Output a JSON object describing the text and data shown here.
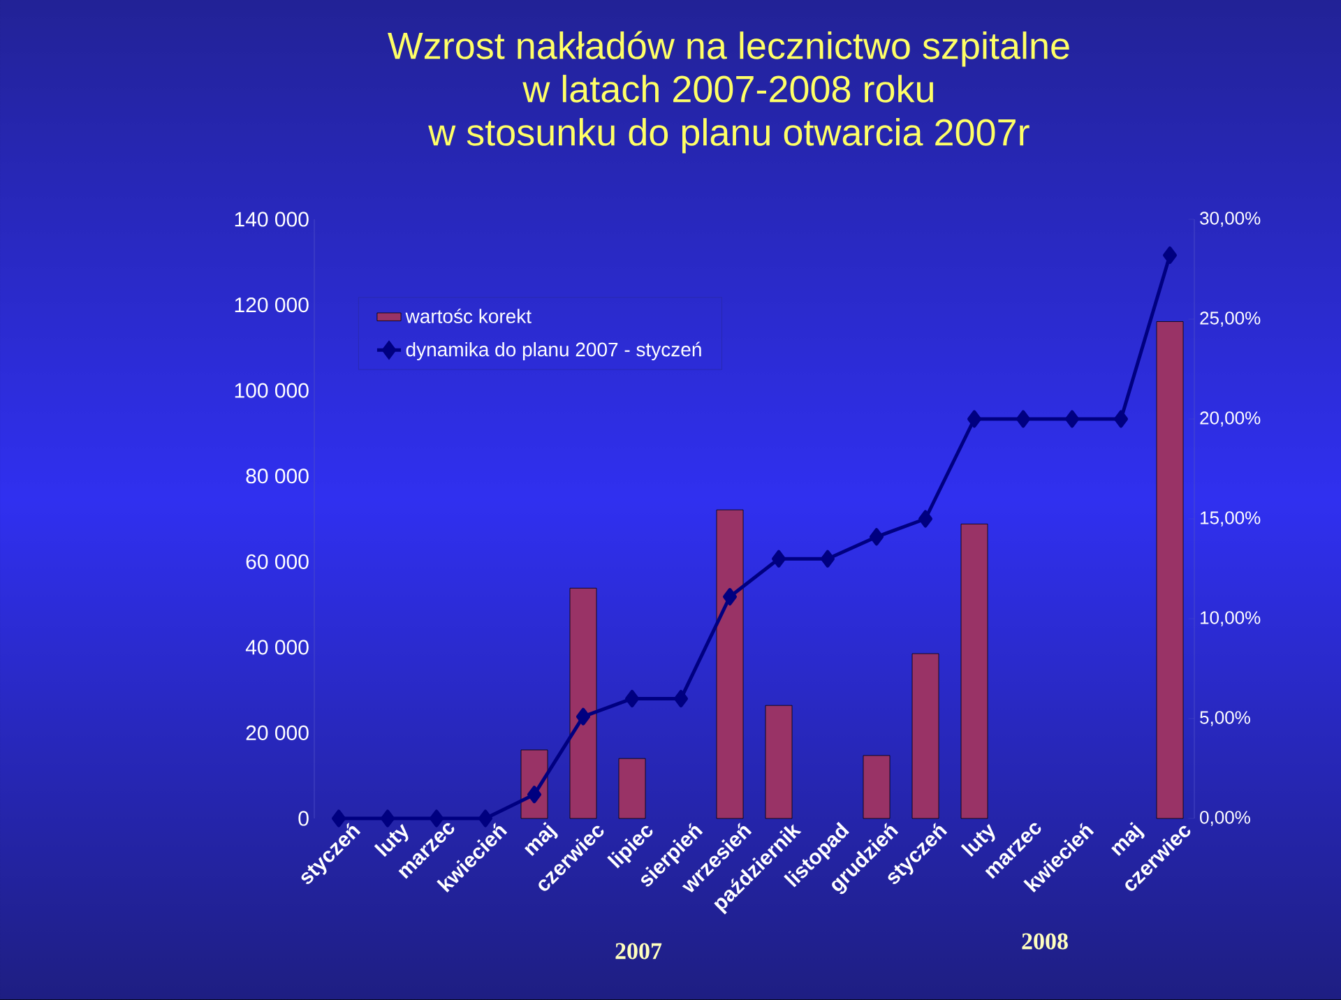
{
  "chart_data": {
    "type": "bar",
    "title": "Wzrost nakładów na lecznictwo szpitalne\nw latach 2007-2008 roku\nw stosunku do planu otwarcia 2007r",
    "categories": [
      "styczeń",
      "luty",
      "marzec",
      "kwiecień",
      "maj",
      "czerwiec",
      "lipiec",
      "sierpień",
      "wrzesień",
      "październik",
      "listopad",
      "grudzień",
      "styczeń",
      "luty",
      "marzec",
      "kwiecień",
      "maj",
      "czerwiec"
    ],
    "series": [
      {
        "name": "wartośc korekt",
        "color": "#993366",
        "values": [
          null,
          null,
          null,
          null,
          16000,
          53800,
          14000,
          null,
          72100,
          26400,
          null,
          14700,
          38500,
          68800,
          null,
          null,
          null,
          116100
        ]
      },
      {
        "name": "dynamika do planu 2007 - styczeń",
        "type": "line",
        "axis": "y2",
        "color": "#000080",
        "marker": "diamond",
        "values": [
          0,
          0,
          0,
          0,
          1.2,
          5.1,
          6.0,
          6.0,
          11.1,
          13.0,
          13.0,
          14.1,
          15.0,
          20.0,
          20.0,
          20.0,
          20.0,
          28.2
        ]
      }
    ],
    "ylim": [
      0,
      140000
    ],
    "yticks": [
      {
        "value": 0,
        "label": "0"
      },
      {
        "value": 20000,
        "label": "20 000"
      },
      {
        "value": 40000,
        "label": "40 000"
      },
      {
        "value": 60000,
        "label": "60 000"
      },
      {
        "value": 80000,
        "label": "80 000"
      },
      {
        "value": 100000,
        "label": "100 000"
      },
      {
        "value": 120000,
        "label": "120 000"
      },
      {
        "value": 140000,
        "label": "140 000"
      }
    ],
    "y2lim": [
      0,
      30
    ],
    "y2ticks": [
      {
        "value": 0,
        "label": "0,00%"
      },
      {
        "value": 5,
        "label": "5,00%"
      },
      {
        "value": 10,
        "label": "10,00%"
      },
      {
        "value": 15,
        "label": "15,00%"
      },
      {
        "value": 20,
        "label": "20,00%"
      },
      {
        "value": 25,
        "label": "25,00%"
      },
      {
        "value": 30,
        "label": "30,00%"
      }
    ],
    "annotations": [
      "2007",
      "2008"
    ],
    "legend": "top left"
  }
}
